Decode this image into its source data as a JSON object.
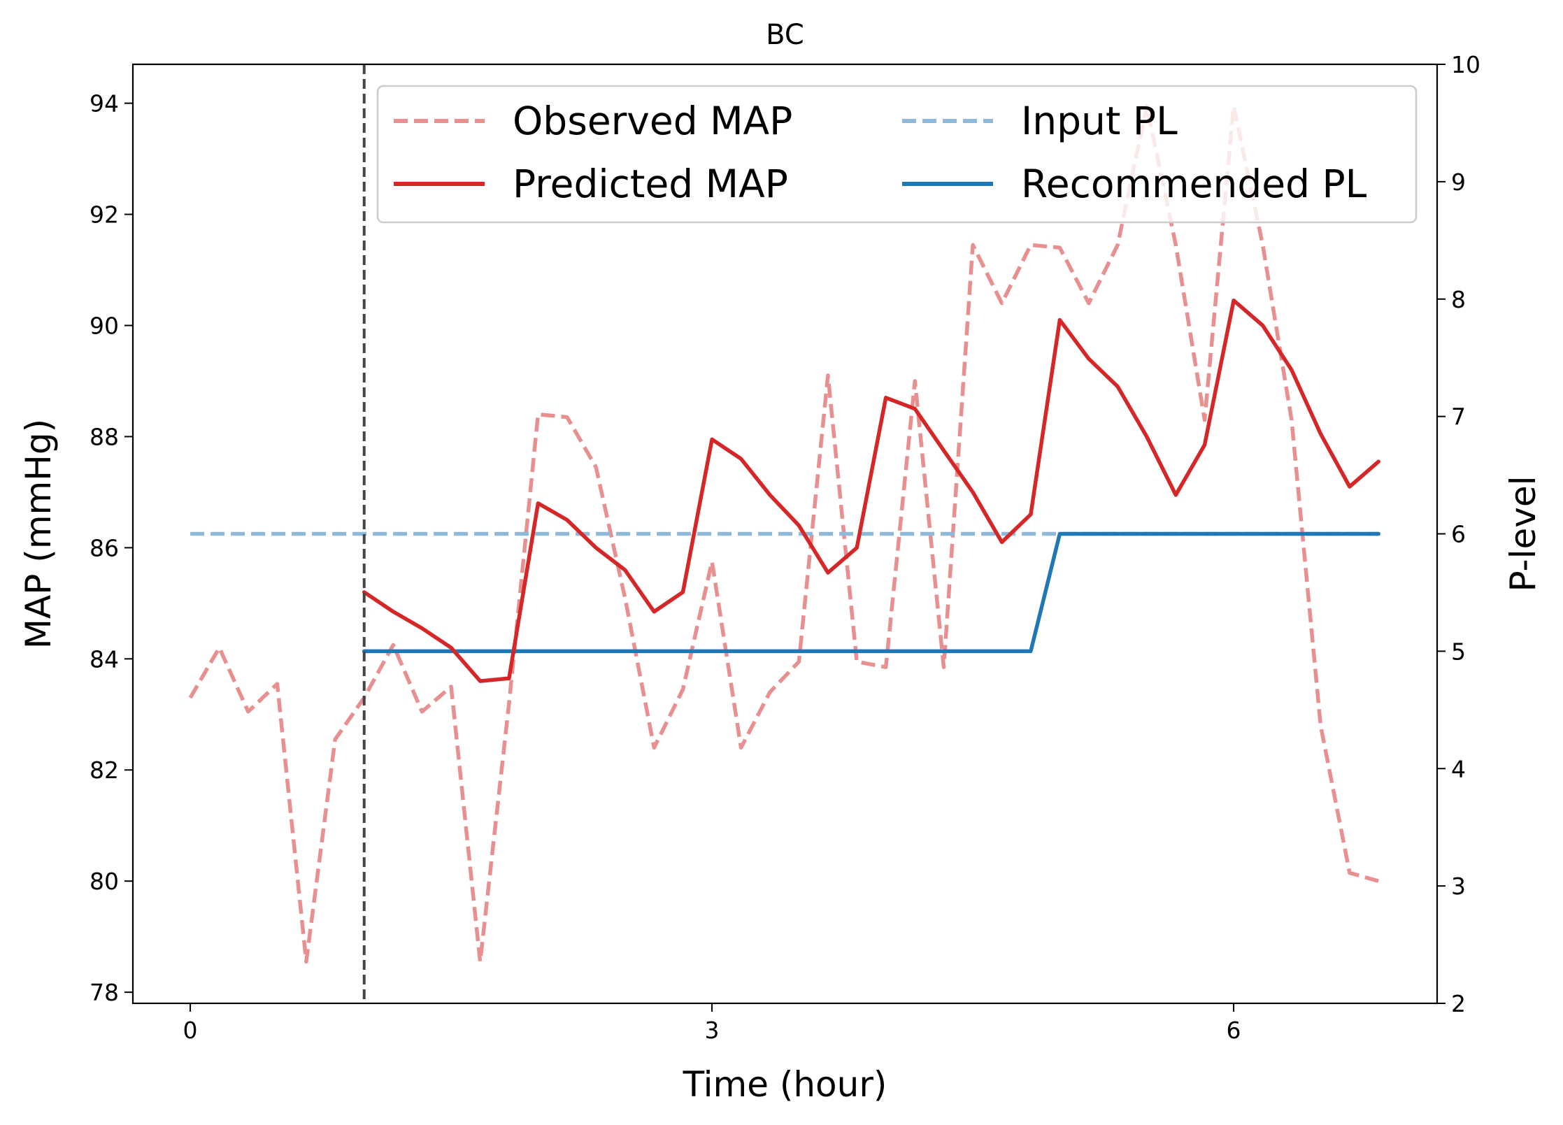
{
  "chart_data": {
    "type": "line",
    "title": "BC",
    "xlabel": "Time (hour)",
    "ylabel_left": "MAP (mmHg)",
    "ylabel_right": "P-level",
    "xlim": [
      -0.33,
      7.17
    ],
    "ylim_left": [
      77.8,
      94.7
    ],
    "ylim_right": [
      2,
      10
    ],
    "x_ticks": [
      0,
      3,
      6
    ],
    "y_ticks_left": [
      78,
      80,
      82,
      84,
      86,
      88,
      90,
      92,
      94
    ],
    "y_ticks_right": [
      2,
      3,
      4,
      5,
      6,
      7,
      8,
      9,
      10
    ],
    "vertical_line_x": 1.0,
    "legend": {
      "placement": "top-center",
      "columns": 2
    },
    "series": [
      {
        "name": "Observed MAP",
        "axis": "left",
        "style": "dashed",
        "color": "#e88f8f",
        "x": [
          0,
          0.167,
          0.333,
          0.5,
          0.667,
          0.833,
          1.0,
          1.167,
          1.333,
          1.5,
          1.667,
          1.833,
          2.0,
          2.167,
          2.333,
          2.5,
          2.667,
          2.833,
          3.0,
          3.167,
          3.333,
          3.5,
          3.667,
          3.833,
          4.0,
          4.167,
          4.333,
          4.5,
          4.667,
          4.833,
          5.0,
          5.167,
          5.333,
          5.5,
          5.667,
          5.833,
          6.0,
          6.167,
          6.333,
          6.5,
          6.667,
          6.833
        ],
        "y": [
          83.3,
          84.2,
          83.05,
          83.55,
          78.55,
          82.55,
          83.3,
          84.25,
          83.05,
          83.5,
          78.55,
          83.2,
          88.4,
          88.35,
          87.45,
          85.1,
          82.4,
          83.45,
          85.75,
          82.4,
          83.4,
          83.95,
          89.1,
          83.95,
          83.85,
          89.0,
          83.85,
          91.45,
          90.4,
          91.45,
          91.4,
          90.4,
          91.45,
          93.95,
          91.45,
          88.3,
          93.95,
          91.45,
          88.3,
          82.8,
          80.15,
          80.0
        ]
      },
      {
        "name": "Predicted MAP",
        "axis": "left",
        "style": "solid",
        "color": "#d62728",
        "x": [
          1.0,
          1.167,
          1.333,
          1.5,
          1.667,
          1.833,
          2.0,
          2.167,
          2.333,
          2.5,
          2.667,
          2.833,
          3.0,
          3.167,
          3.333,
          3.5,
          3.667,
          3.833,
          4.0,
          4.167,
          4.333,
          4.5,
          4.667,
          4.833,
          5.0,
          5.167,
          5.333,
          5.5,
          5.667,
          5.833,
          6.0,
          6.167,
          6.333,
          6.5,
          6.667,
          6.833
        ],
        "y": [
          85.2,
          84.85,
          84.55,
          84.2,
          83.6,
          83.65,
          86.8,
          86.5,
          86.0,
          85.6,
          84.85,
          85.2,
          87.95,
          87.6,
          86.95,
          86.4,
          85.55,
          86.0,
          88.7,
          88.5,
          87.75,
          87.0,
          86.1,
          86.6,
          90.1,
          89.4,
          88.9,
          88.0,
          86.95,
          87.85,
          90.45,
          90.0,
          89.2,
          88.05,
          87.1,
          87.55
        ]
      },
      {
        "name": "Input PL",
        "axis": "right",
        "style": "dashed",
        "color": "#8fb9d9",
        "x": [
          0,
          6.833
        ],
        "y": [
          6,
          6
        ]
      },
      {
        "name": "Recommended PL",
        "axis": "right",
        "style": "solid",
        "color": "#1f77b4",
        "x": [
          1.0,
          4.833,
          5.0,
          6.833
        ],
        "y": [
          5,
          5,
          6,
          6
        ]
      }
    ]
  }
}
